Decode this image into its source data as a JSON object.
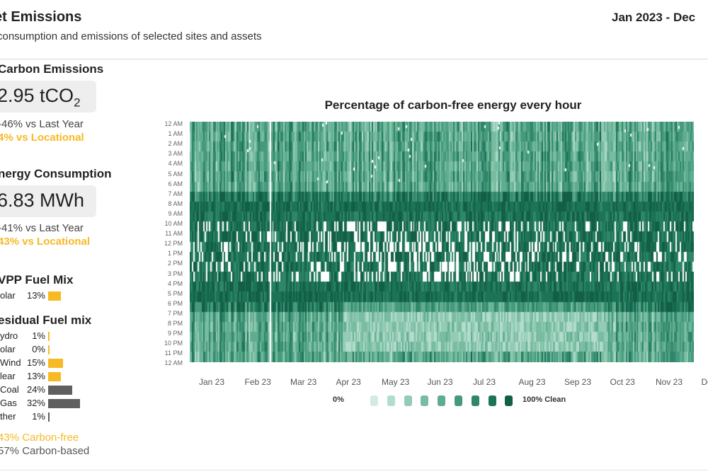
{
  "header": {
    "title": "et Emissions",
    "subtitle": "consumption and emissions of selected sites and assets",
    "date_range": "Jan 2023 - Dec"
  },
  "carbon": {
    "title": "Carbon Emissions",
    "value": "2.95 tCO",
    "unit_sub": "2",
    "vs_last_year": "-46% vs Last Year",
    "vs_locational": "4% vs Locational"
  },
  "energy": {
    "title": "nergy Consumption",
    "value": "6.83 MWh",
    "vs_last_year": "-41% vs Last Year",
    "vs_locational": "43% vs Locational"
  },
  "vpp": {
    "title": "VPP Fuel Mix",
    "items": [
      {
        "label": "olar",
        "pct": "13%",
        "value": 13,
        "color": "#f7b924"
      }
    ]
  },
  "residual": {
    "title": "esidual Fuel mix",
    "items": [
      {
        "label": "ydro",
        "pct": "1%",
        "value": 1,
        "color": "#f7b924"
      },
      {
        "label": "olar",
        "pct": "0%",
        "value": 0,
        "color": "#f7b924"
      },
      {
        "label": "Wind",
        "pct": "15%",
        "value": 15,
        "color": "#f7b924"
      },
      {
        "label": "lear",
        "pct": "13%",
        "value": 13,
        "color": "#f7b924"
      },
      {
        "label": "Coal",
        "pct": "24%",
        "value": 24,
        "color": "#5f5f5f"
      },
      {
        "label": "Gas",
        "pct": "32%",
        "value": 32,
        "color": "#5f5f5f"
      },
      {
        "label": "ther",
        "pct": "1%",
        "value": 1,
        "color": "#5f5f5f"
      }
    ]
  },
  "summary": {
    "carbon_free": "43% Carbon-free",
    "carbon_based": "57% Carbon-based"
  },
  "heatmap": {
    "title": "Percentage of carbon-free energy every hour",
    "hours": [
      "12 AM",
      "1 AM",
      "2 AM",
      "3 AM",
      "4 AM",
      "5 AM",
      "6 AM",
      "7 AM",
      "8 AM",
      "9 AM",
      "10 AM",
      "11 AM",
      "12 PM",
      "1 PM",
      "2 PM",
      "3 PM",
      "4 PM",
      "5 PM",
      "6 PM",
      "7 PM",
      "8 PM",
      "9 PM",
      "10 PM",
      "11 PM",
      "12 AM"
    ],
    "months": [
      "Jan 23",
      "Feb 23",
      "Mar 23",
      "Apr 23",
      "May 23",
      "Jun 23",
      "Jul 23",
      "Aug 23",
      "Sep 23",
      "Oct 23",
      "Nov 23",
      "De"
    ],
    "legend": {
      "min_label": "0%",
      "max_label": "100% Clean",
      "colors": [
        "#d3ebe2",
        "#b2dccc",
        "#93cbb5",
        "#78bca2",
        "#5fac90",
        "#46997c",
        "#2f8668",
        "#1c7356",
        "#125f46"
      ]
    },
    "accent_color": "#f7b924"
  }
}
